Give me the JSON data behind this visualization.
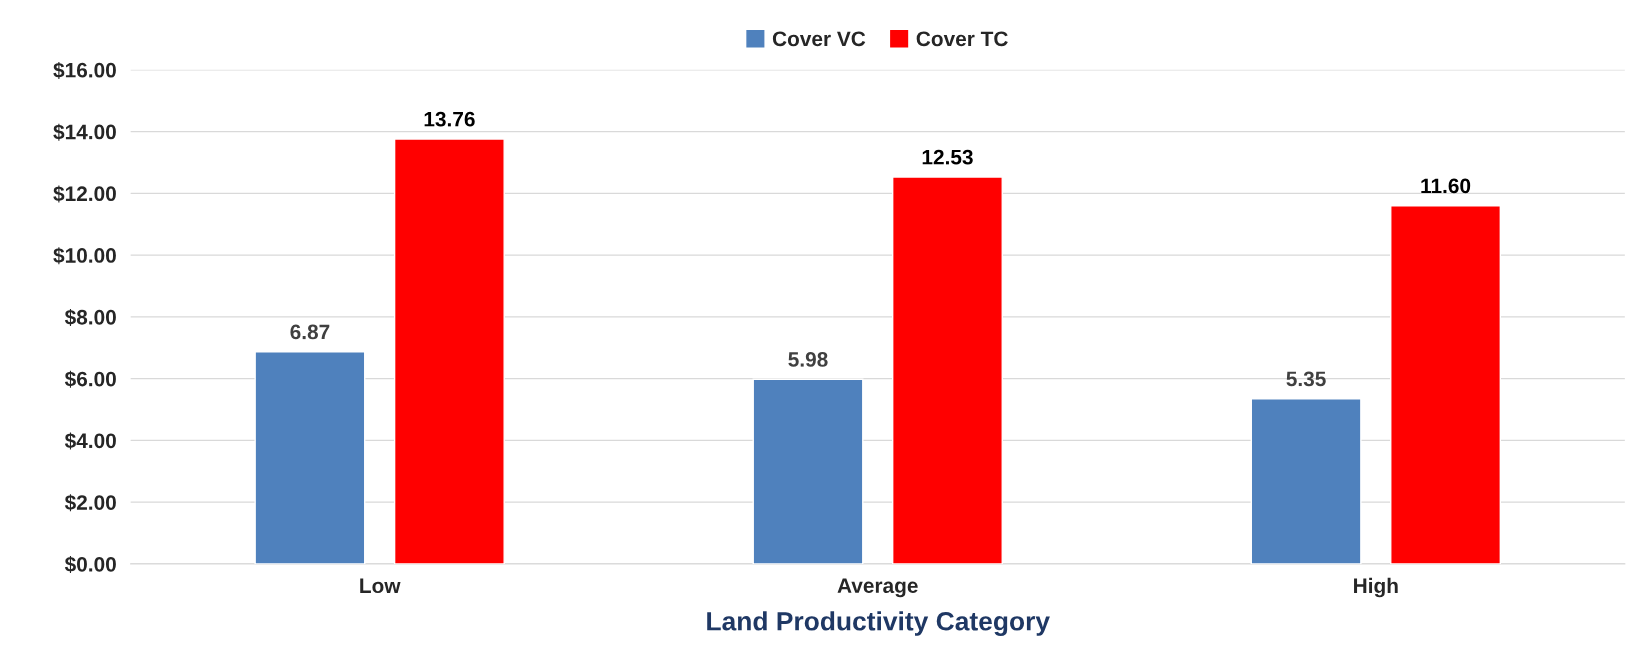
{
  "chart_data": {
    "type": "bar",
    "xlabel": "Land Productivity Category",
    "categories": [
      "Low",
      "Average",
      "High"
    ],
    "series": [
      {
        "name": "Cover VC",
        "color": "#4f81bd",
        "values": [
          6.87,
          5.98,
          5.35
        ],
        "value_labels": [
          "6.87",
          "5.98",
          "5.35"
        ]
      },
      {
        "name": "Cover TC",
        "color": "#ff0000",
        "values": [
          13.76,
          12.53,
          11.6
        ],
        "value_labels": [
          "13.76",
          "12.53",
          "11.60"
        ]
      }
    ],
    "ylim": [
      0,
      16
    ],
    "yticks": [
      {
        "value": 0,
        "label": "$0.00"
      },
      {
        "value": 2,
        "label": "$2.00"
      },
      {
        "value": 4,
        "label": "$4.00"
      },
      {
        "value": 6,
        "label": "$6.00"
      },
      {
        "value": 8,
        "label": "$8.00"
      },
      {
        "value": 10,
        "label": "$10.00"
      },
      {
        "value": 12,
        "label": "$12.00"
      },
      {
        "value": 14,
        "label": "$14.00"
      },
      {
        "value": 16,
        "label": "$16.00"
      }
    ],
    "grid": "y",
    "legend": "top"
  }
}
